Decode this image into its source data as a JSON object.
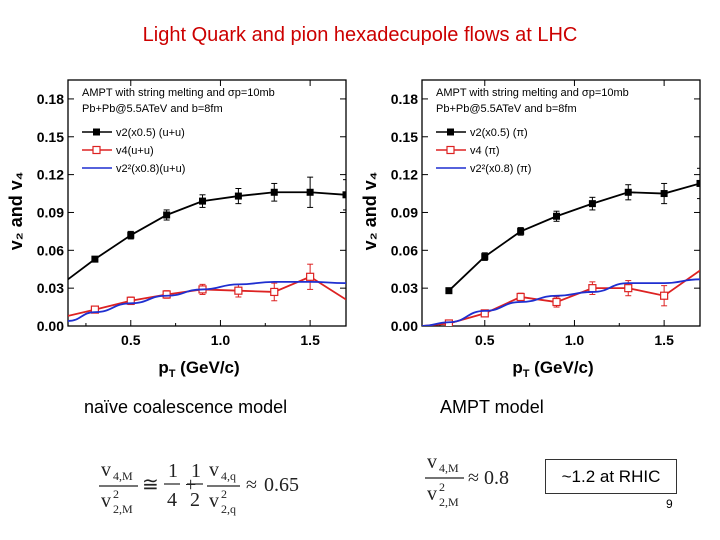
{
  "slide": {
    "title": "Light Quark and pion hexadecupole flows at LHC",
    "caption_left": "naïve coalescence model",
    "caption_right": "AMPT model",
    "rhic_note": "~1.2 at RHIC",
    "page_number": "9"
  },
  "formulas": {
    "left": {
      "lhs_num": "v",
      "lhs_num_sub": "4,M",
      "lhs_den": "v",
      "lhs_den_sup": "2",
      "lhs_den_sub": "2,M",
      "approx1": "≅",
      "frac1_num": "1",
      "frac1_den": "4",
      "plus": "+",
      "frac2_num": "1",
      "frac2_den": "2",
      "rhs_num": "v",
      "rhs_num_sub": "4,q",
      "rhs_den": "v",
      "rhs_den_sup": "2",
      "rhs_den_sub": "2,q",
      "approx2": "≈",
      "value": "0.65"
    },
    "right": {
      "lhs_num": "v",
      "lhs_num_sub": "4,M",
      "lhs_den": "v",
      "lhs_den_sup": "2",
      "lhs_den_sub": "2,M",
      "approx": "≈",
      "value": "0.8"
    }
  },
  "colors": {
    "title": "#cc0000",
    "black_series": "#000000",
    "red_series": "#dd2222",
    "blue_series": "#1f2fd0"
  },
  "chart_data": [
    {
      "type": "line",
      "panel": "left",
      "xlabel_main": "p",
      "xlabel_sub": "T",
      "xlabel_rest": " (GeV/c)",
      "ylabel": "v₂ and v₄",
      "xlim": [
        0.15,
        1.7
      ],
      "ylim": [
        0.0,
        0.195
      ],
      "xticks": [
        0.5,
        1.0,
        1.5
      ],
      "xtick_labels": [
        "0.5",
        "1.0",
        "1.5"
      ],
      "yticks": [
        0.0,
        0.03,
        0.06,
        0.09,
        0.12,
        0.15,
        0.18
      ],
      "ytick_labels": [
        "0.00",
        "0.03",
        "0.06",
        "0.09",
        "0.12",
        "0.15",
        "0.18"
      ],
      "legend_header": [
        "AMPT with string melting and σp=10mb",
        "Pb+Pb@5.5ATeV and b=8fm"
      ],
      "legend": [
        "v2(x0.5) (u+u)",
        "v4(u+u)",
        "v2²(x0.8)(u+u)"
      ],
      "series": [
        {
          "name": "v2(x0.5)",
          "color": "#000000",
          "marker": "filled-square",
          "line": "through-points",
          "x": [
            0.15,
            0.3,
            0.5,
            0.7,
            0.9,
            1.1,
            1.3,
            1.5,
            1.7
          ],
          "y": [
            0.037,
            0.053,
            0.072,
            0.088,
            0.099,
            0.103,
            0.106,
            0.106,
            0.104
          ],
          "err": [
            0,
            0.002,
            0.003,
            0.004,
            0.005,
            0.006,
            0.007,
            0.012,
            0.012
          ],
          "markers": [
            false,
            true,
            true,
            true,
            true,
            true,
            true,
            true,
            true
          ]
        },
        {
          "name": "v4",
          "color": "#dd2222",
          "marker": "open-square",
          "line": "through-points",
          "x": [
            0.15,
            0.3,
            0.5,
            0.7,
            0.9,
            1.1,
            1.3,
            1.5,
            1.7
          ],
          "y": [
            0.008,
            0.013,
            0.02,
            0.025,
            0.029,
            0.028,
            0.027,
            0.039,
            0.021
          ],
          "err": [
            0,
            0.002,
            0.003,
            0.003,
            0.004,
            0.005,
            0.007,
            0.01,
            0.012
          ],
          "markers": [
            false,
            true,
            true,
            true,
            true,
            true,
            true,
            true,
            false
          ]
        },
        {
          "name": "v2^2(x0.8)",
          "color": "#1f2fd0",
          "marker": "none",
          "line": "smooth",
          "x": [
            0.15,
            0.3,
            0.5,
            0.7,
            0.9,
            1.1,
            1.3,
            1.5,
            1.7
          ],
          "y": [
            0.004,
            0.011,
            0.018,
            0.024,
            0.029,
            0.033,
            0.035,
            0.035,
            0.034
          ]
        }
      ]
    },
    {
      "type": "line",
      "panel": "right",
      "xlabel_main": "p",
      "xlabel_sub": "T",
      "xlabel_rest": " (GeV/c)",
      "ylabel": "v₂ and v₄",
      "xlim": [
        0.15,
        1.7
      ],
      "ylim": [
        0.0,
        0.195
      ],
      "xticks": [
        0.5,
        1.0,
        1.5
      ],
      "xtick_labels": [
        "0.5",
        "1.0",
        "1.5"
      ],
      "yticks": [
        0.0,
        0.03,
        0.06,
        0.09,
        0.12,
        0.15,
        0.18
      ],
      "ytick_labels": [
        "0.00",
        "0.03",
        "0.06",
        "0.09",
        "0.12",
        "0.15",
        "0.18"
      ],
      "legend_header": [
        "AMPT with string melting and σp=10mb",
        "Pb+Pb@5.5ATeV and b=8fm"
      ],
      "legend": [
        "v2(x0.5) (π)",
        "v4 (π)",
        "v2²(x0.8) (π)"
      ],
      "series": [
        {
          "name": "v2(x0.5)",
          "color": "#000000",
          "marker": "filled-square",
          "line": "through-points",
          "x": [
            0.3,
            0.5,
            0.7,
            0.9,
            1.1,
            1.3,
            1.5,
            1.7
          ],
          "y": [
            0.028,
            0.055,
            0.075,
            0.087,
            0.097,
            0.106,
            0.105,
            0.113
          ],
          "err": [
            0.002,
            0.003,
            0.003,
            0.004,
            0.005,
            0.006,
            0.008,
            0.012
          ],
          "markers": [
            true,
            true,
            true,
            true,
            true,
            true,
            true,
            true
          ]
        },
        {
          "name": "v4",
          "color": "#dd2222",
          "marker": "open-square",
          "line": "through-points",
          "x": [
            0.15,
            0.3,
            0.5,
            0.7,
            0.9,
            1.1,
            1.3,
            1.5,
            1.7
          ],
          "y": [
            0.0,
            0.002,
            0.01,
            0.023,
            0.019,
            0.03,
            0.03,
            0.024,
            0.044
          ],
          "err": [
            0,
            0.001,
            0.002,
            0.003,
            0.004,
            0.005,
            0.006,
            0.008,
            0.012
          ],
          "markers": [
            false,
            true,
            true,
            true,
            true,
            true,
            true,
            true,
            false
          ]
        },
        {
          "name": "v2^2(x0.8)",
          "color": "#1f2fd0",
          "marker": "none",
          "line": "smooth",
          "x": [
            0.15,
            0.3,
            0.5,
            0.7,
            0.9,
            1.1,
            1.3,
            1.5,
            1.7
          ],
          "y": [
            0.0,
            0.003,
            0.012,
            0.019,
            0.024,
            0.027,
            0.034,
            0.034,
            0.037
          ]
        }
      ]
    }
  ]
}
